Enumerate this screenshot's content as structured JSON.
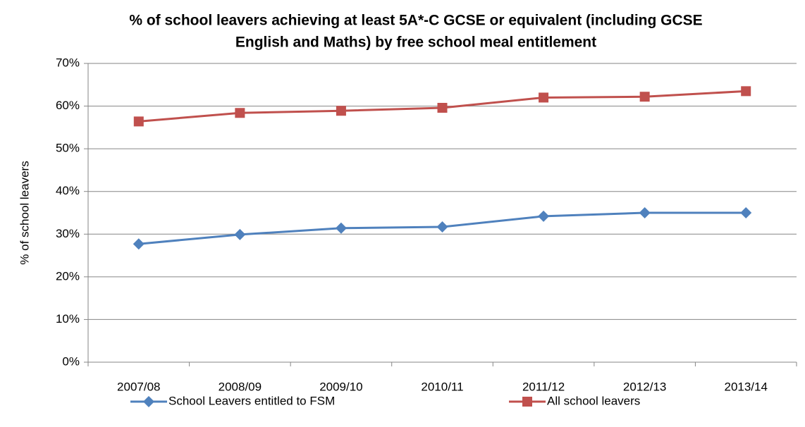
{
  "chart_data": {
    "type": "line",
    "title": [
      "% of school leavers achieving at least 5A*-C GCSE or equivalent (including GCSE",
      "English and Maths) by free school meal entitlement"
    ],
    "ylabel": "% of school leavers",
    "categories": [
      "2007/08",
      "2008/09",
      "2009/10",
      "2010/11",
      "2011/12",
      "2012/13",
      "2013/14"
    ],
    "series": [
      {
        "name": "School Leavers entitled to FSM",
        "color": "#4f81bd",
        "marker": "diamond",
        "values": [
          27.7,
          29.9,
          31.4,
          31.7,
          34.2,
          35.0,
          35.0
        ]
      },
      {
        "name": "All school leavers",
        "color": "#c0504d",
        "marker": "square",
        "values": [
          56.4,
          58.4,
          58.9,
          59.6,
          62.0,
          62.2,
          63.5
        ]
      }
    ],
    "ylim": [
      0,
      70
    ],
    "yticks": [
      {
        "value": 0,
        "label": "0%"
      },
      {
        "value": 10,
        "label": "10%"
      },
      {
        "value": 20,
        "label": "20%"
      },
      {
        "value": 30,
        "label": "30%"
      },
      {
        "value": 40,
        "label": "40%"
      },
      {
        "value": 50,
        "label": "50%"
      },
      {
        "value": 60,
        "label": "60%"
      },
      {
        "value": 70,
        "label": "70%"
      }
    ],
    "grid": true,
    "legend": "bottom"
  }
}
